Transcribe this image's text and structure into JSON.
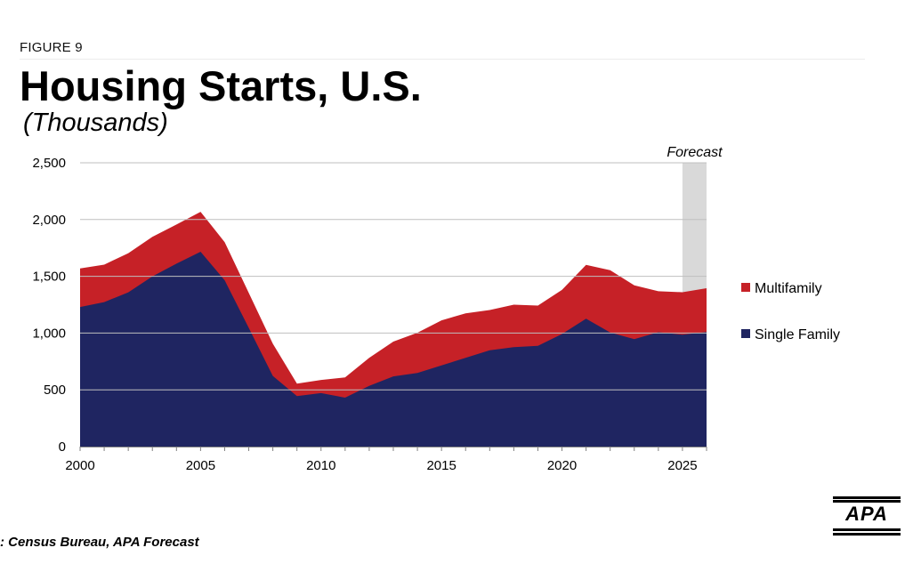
{
  "header": {
    "figure_label": "FIGURE 9",
    "title": "Housing Starts, U.S.",
    "subtitle": "(Thousands)"
  },
  "footer": {
    "source": ": Census Bureau, APA Forecast",
    "logo_text": "APA"
  },
  "colors": {
    "single_family": "#1f2561",
    "multifamily": "#c62127",
    "forecast_band": "#d9d9d9",
    "gridline": "#bfbfbf"
  },
  "chart_data": {
    "type": "area",
    "stacked": true,
    "title": "Housing Starts, U.S.",
    "subtitle": "(Thousands)",
    "xlim": [
      2000,
      2026
    ],
    "ylim": [
      0,
      2500
    ],
    "y_ticks": [
      0,
      500,
      1000,
      1500,
      2000,
      2500
    ],
    "y_tick_labels": [
      "0",
      "500",
      "1,000",
      "1,500",
      "2,000",
      "2,500"
    ],
    "x_ticks": [
      2000,
      2005,
      2010,
      2015,
      2020,
      2025
    ],
    "x_tick_labels": [
      "2000",
      "2005",
      "2010",
      "2015",
      "2020",
      "2025"
    ],
    "x": [
      2000,
      2001,
      2002,
      2003,
      2004,
      2005,
      2006,
      2007,
      2008,
      2009,
      2010,
      2011,
      2012,
      2013,
      2014,
      2015,
      2016,
      2017,
      2018,
      2019,
      2020,
      2021,
      2022,
      2023,
      2024,
      2025,
      2026
    ],
    "series": [
      {
        "name": "Single Family",
        "values": [
          1230,
          1273,
          1359,
          1499,
          1611,
          1716,
          1465,
          1046,
          622,
          445,
          471,
          431,
          535,
          618,
          648,
          715,
          782,
          849,
          876,
          888,
          991,
          1127,
          1005,
          947,
          1008,
          985,
          1010
        ]
      },
      {
        "name": "Multifamily",
        "values": [
          339,
          330,
          345,
          349,
          345,
          352,
          336,
          309,
          284,
          109,
          116,
          178,
          246,
          307,
          355,
          397,
          392,
          354,
          374,
          354,
          389,
          474,
          548,
          473,
          360,
          375,
          385
        ]
      }
    ],
    "legend": [
      "Multifamily",
      "Single Family"
    ],
    "legend_position": "right",
    "grid": true,
    "annotations": [
      {
        "text": "Forecast",
        "x_start": 2025,
        "x_end": 2026
      }
    ]
  }
}
